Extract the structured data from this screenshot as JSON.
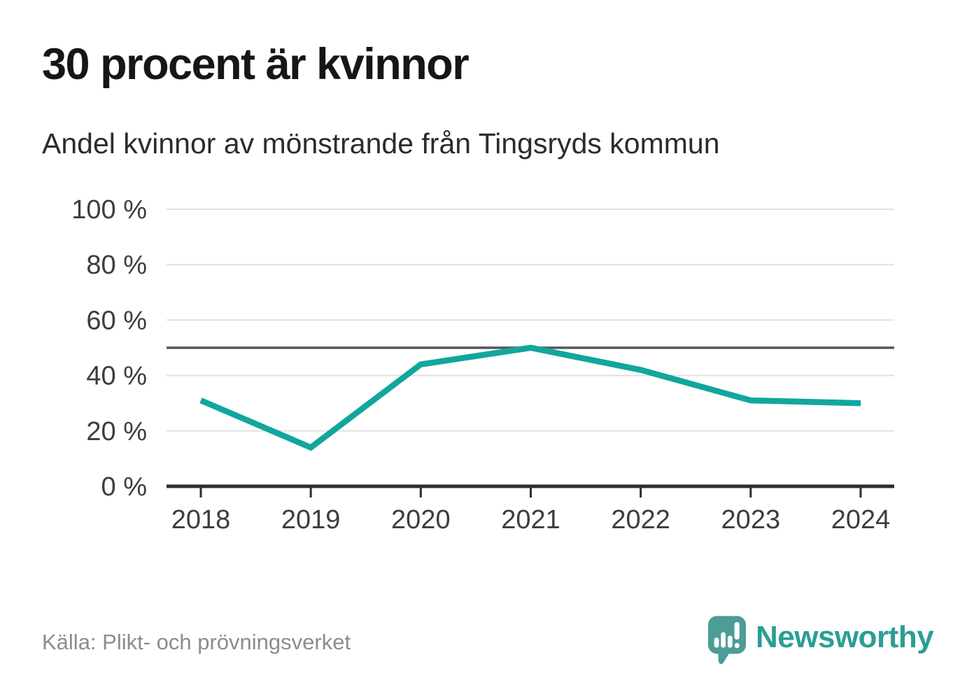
{
  "header": {
    "title": "30 procent är kvinnor",
    "subtitle": "Andel kvinnor av mönstrande från Tingsryds kommun"
  },
  "chart_data": {
    "type": "line",
    "title": "30 procent är kvinnor",
    "subtitle": "Andel kvinnor av mönstrande från Tingsryds kommun",
    "x": [
      2018,
      2019,
      2020,
      2021,
      2022,
      2023,
      2024
    ],
    "series": [
      {
        "name": "Andel kvinnor av mönstrande",
        "values": [
          31,
          14,
          44,
          50,
          42,
          31,
          30
        ]
      }
    ],
    "unit": "%",
    "ylim": [
      0,
      100
    ],
    "y_ticks": [
      {
        "value": 100,
        "label": "100 %"
      },
      {
        "value": 80,
        "label": "80 %"
      },
      {
        "value": 60,
        "label": "60 %"
      },
      {
        "value": 40,
        "label": "40 %"
      },
      {
        "value": 20,
        "label": "20 %"
      },
      {
        "value": 0,
        "label": "0 %"
      }
    ],
    "reference_line": {
      "value": 50
    },
    "grid": "horizontal",
    "legend": "none"
  },
  "footer": {
    "source": "Källa: Plikt- och prövningsverket",
    "logo_text": "Newsworthy"
  },
  "icons": {
    "logo": "newsworthy-speech-bubble-bar-chart-icon"
  },
  "colors": {
    "line": "#11a69e",
    "grid": "#e2e2e2",
    "reference_line": "#55575a",
    "axis": "#2e2e2e",
    "axis_text": "#3d3d3d",
    "title": "#161616",
    "subtitle": "#2b2b2b",
    "source": "#8c8c8c",
    "logo_mark": "#4d9c97",
    "logo_text": "#2b9e95"
  }
}
